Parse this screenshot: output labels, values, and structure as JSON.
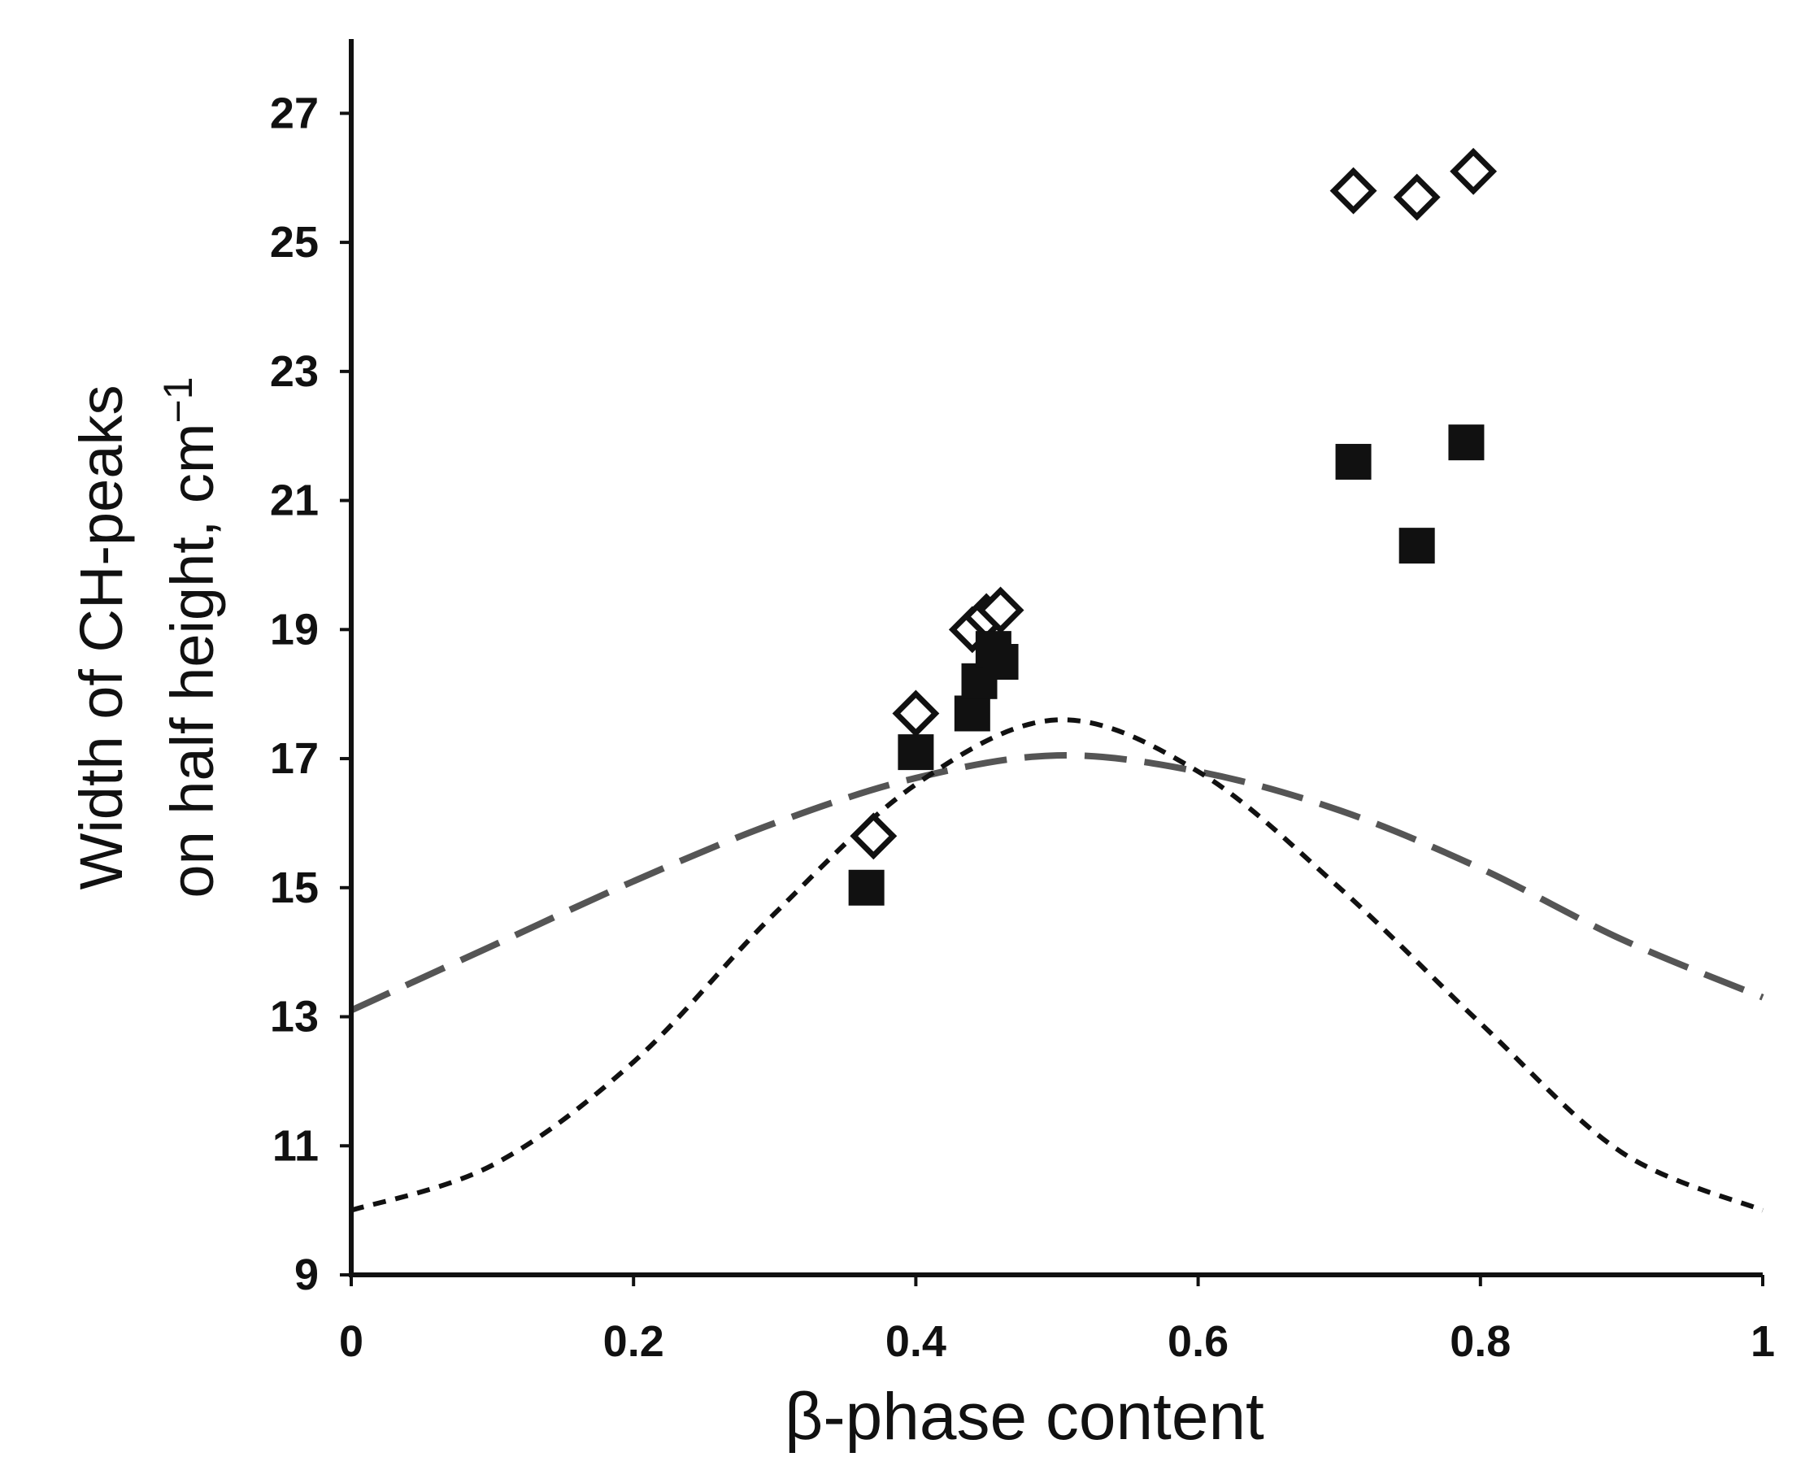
{
  "chart_data": {
    "type": "scatter",
    "xlabel": "β-phase content",
    "ylabel_line1": "Width of CH-peaks",
    "ylabel_line2": "on half height, cm",
    "ylabel_superscript": "−1",
    "xlim": [
      0,
      1
    ],
    "ylim": [
      9,
      28
    ],
    "x_ticks": [
      0,
      0.2,
      0.4,
      0.6,
      0.8,
      1
    ],
    "x_tick_labels": [
      "0",
      "0.2",
      "0.4",
      "0.6",
      "0.8",
      "1"
    ],
    "y_ticks": [
      9,
      11,
      13,
      15,
      17,
      19,
      21,
      23,
      25,
      27
    ],
    "y_tick_labels": [
      "9",
      "11",
      "13",
      "15",
      "17",
      "19",
      "21",
      "23",
      "25",
      "27"
    ],
    "grid": false,
    "series": [
      {
        "marker": "diamond-open",
        "color": "#111111",
        "points": [
          [
            0.37,
            15.8
          ],
          [
            0.4,
            17.7
          ],
          [
            0.44,
            19.0
          ],
          [
            0.45,
            19.2
          ],
          [
            0.46,
            19.3
          ],
          [
            0.71,
            25.8
          ],
          [
            0.755,
            25.7
          ],
          [
            0.795,
            26.1
          ]
        ]
      },
      {
        "marker": "square-filled",
        "color": "#111111",
        "points": [
          [
            0.365,
            15.0
          ],
          [
            0.4,
            17.1
          ],
          [
            0.44,
            17.7
          ],
          [
            0.445,
            18.2
          ],
          [
            0.455,
            18.7
          ],
          [
            0.46,
            18.5
          ],
          [
            0.71,
            21.6
          ],
          [
            0.755,
            20.3
          ],
          [
            0.79,
            21.9
          ]
        ]
      },
      {
        "type": "line",
        "style": "long-dash",
        "color": "#555555",
        "points": [
          [
            0,
            13.1
          ],
          [
            0.1,
            14.1
          ],
          [
            0.2,
            15.1
          ],
          [
            0.3,
            16.0
          ],
          [
            0.4,
            16.7
          ],
          [
            0.5,
            17.05
          ],
          [
            0.6,
            16.8
          ],
          [
            0.7,
            16.2
          ],
          [
            0.8,
            15.3
          ],
          [
            0.9,
            14.2
          ],
          [
            1.0,
            13.3
          ]
        ]
      },
      {
        "type": "line",
        "style": "short-dash",
        "color": "#111111",
        "points": [
          [
            0,
            10.0
          ],
          [
            0.1,
            10.7
          ],
          [
            0.2,
            12.3
          ],
          [
            0.3,
            14.6
          ],
          [
            0.4,
            16.6
          ],
          [
            0.5,
            17.6
          ],
          [
            0.6,
            16.8
          ],
          [
            0.7,
            15.0
          ],
          [
            0.8,
            12.9
          ],
          [
            0.9,
            10.9
          ],
          [
            1.0,
            10.0
          ]
        ]
      }
    ]
  }
}
